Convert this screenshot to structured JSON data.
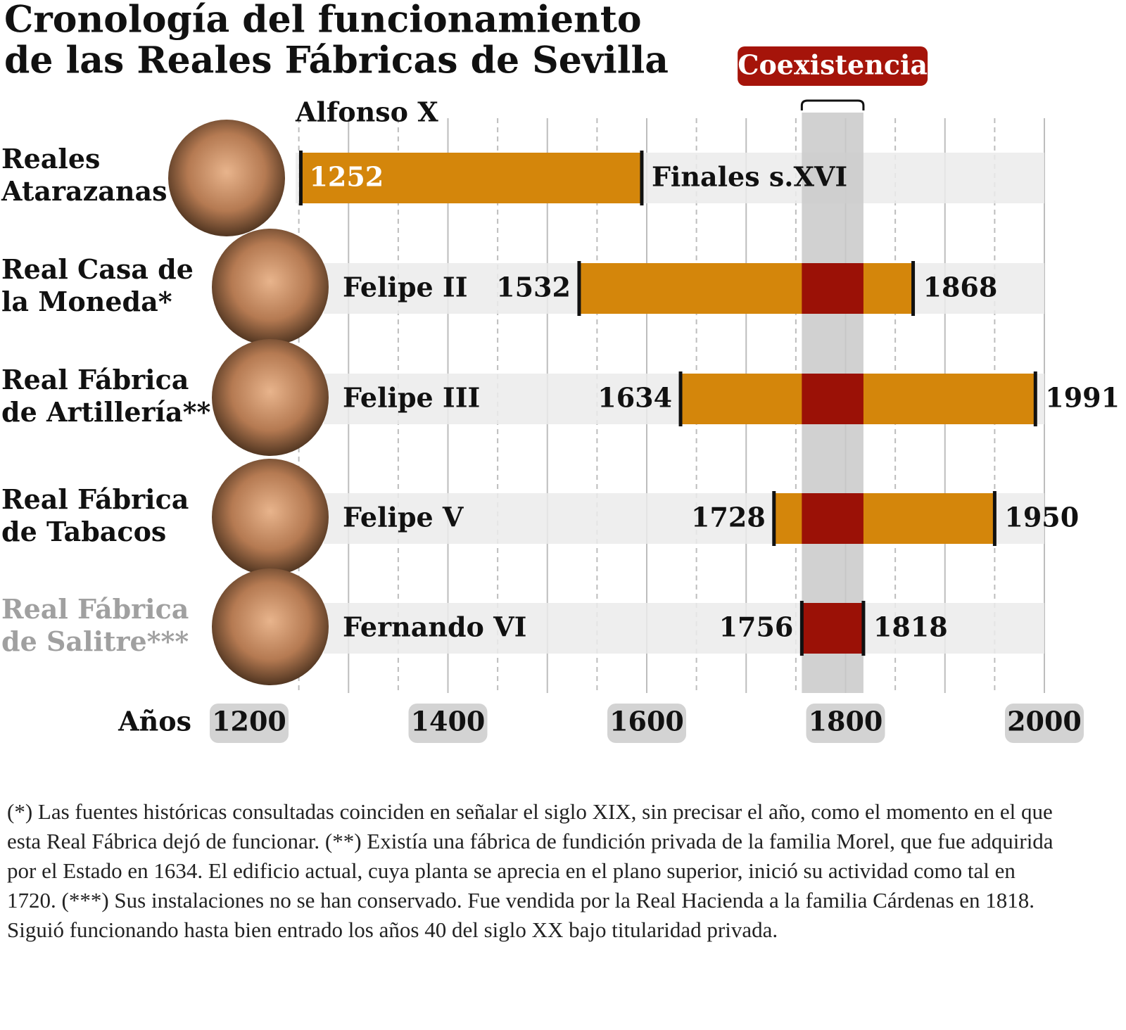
{
  "chart_data": {
    "type": "timeline",
    "title": "Cronología del funcionamiento",
    "title_line2": "de las Reales Fábricas de Sevilla",
    "categories": [
      "Reales Atarazanas",
      "Real Casa de la Moneda*",
      "Real Fábrica de Artillería**",
      "Real Fábrica de Tabacos",
      "Real Fábrica de Salitre***"
    ],
    "category_colors": [
      "#111111",
      "#111111",
      "#111111",
      "#111111",
      "#a0a0a0"
    ],
    "rulers": [
      "Alfonso X",
      "Felipe II",
      "Felipe III",
      "Felipe V",
      "Fernando VI"
    ],
    "start": [
      1252,
      1532,
      1634,
      1728,
      1756
    ],
    "end": [
      1595,
      1868,
      1991,
      1950,
      1818
    ],
    "end_value_labels": [
      "Finales s.XVI",
      null,
      null,
      null,
      null
    ],
    "color": "#d4860b",
    "overlap_color": "#9b1106",
    "coexistence": {
      "label": "Coexistencia",
      "range": [
        1756,
        1818
      ],
      "color": "#c9c9c9"
    },
    "xlabel": "Años",
    "xlim": [
      1200,
      2000
    ],
    "xticks": [
      1200,
      1400,
      1600,
      1800,
      2000
    ],
    "xgrid_major": [
      1300,
      1400,
      1500,
      1600,
      1700,
      1800,
      1900,
      2000
    ],
    "xgrid_minor": [
      1250,
      1350,
      1450,
      1550,
      1650,
      1750,
      1850,
      1950
    ],
    "grid": true,
    "footnote": "(*) Las fuentes históricas consultadas coinciden en señalar el siglo XIX, sin precisar el año, como el momento en el que esta Real Fábrica dejó de funcionar. (**) Existía una fábrica de fundición privada de la familia Morel, que fue adquirida por el Estado en 1634. El edificio actual, cuya planta se aprecia en el plano superior, inició su actividad como tal en 1720. (***) Sus instalaciones no se han conservado. Fue vendida por la Real Hacienda a la familia Cárdenas en 1818. Siguió funcionando hasta bien entrado los años 40 del siglo XX bajo titularidad privada."
  }
}
